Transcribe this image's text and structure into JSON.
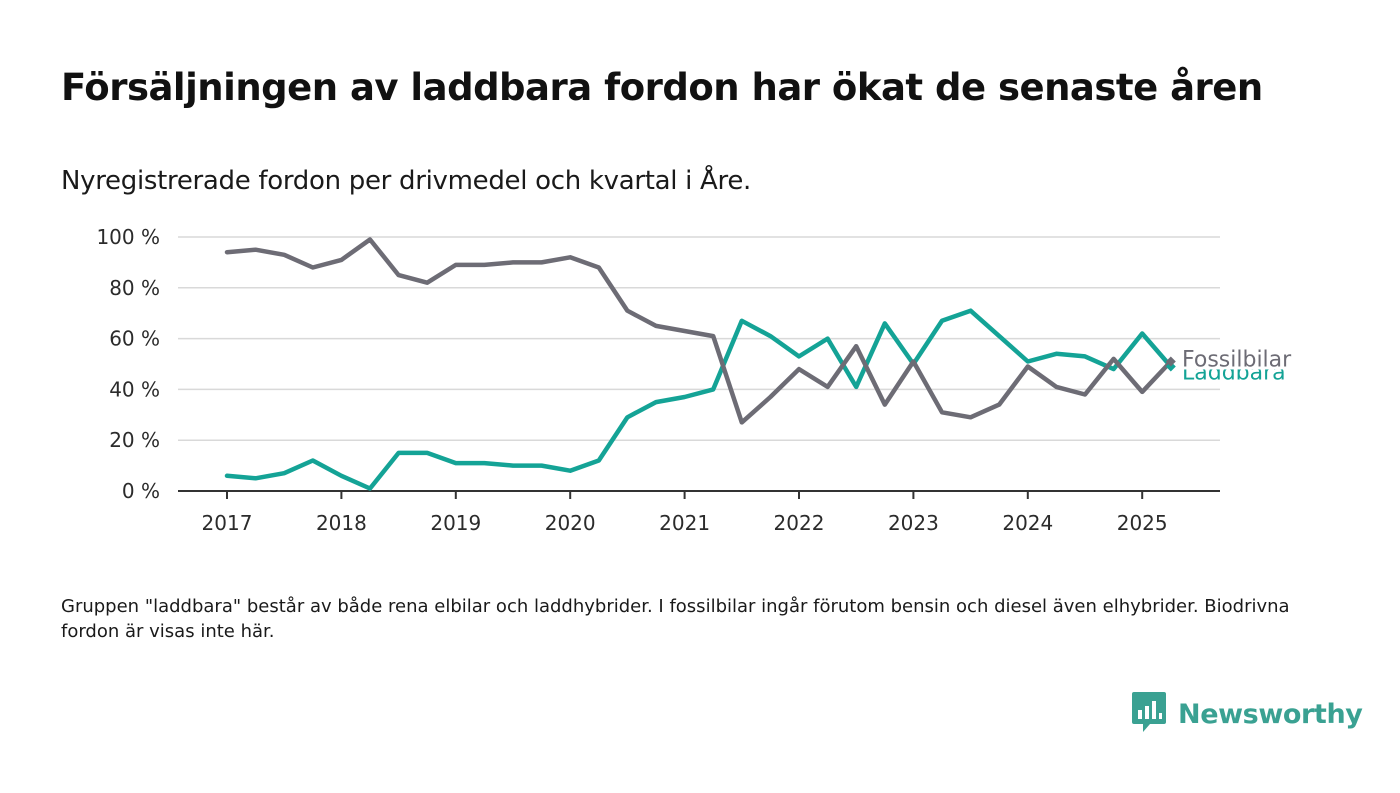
{
  "title": "Försäljningen av laddbara fordon har ökat de senaste åren",
  "subtitle": "Nyregistrerade fordon per drivmedel och kvartal i Åre.",
  "note": "Gruppen \"laddbara\" består av både rena elbilar och laddhybrider. I fossilbilar ingår förutom bensin och diesel även elhybrider. Biodrivna fordon är visas inte här.",
  "brand": {
    "name": "Newsworthy"
  },
  "colors": {
    "laddbara": "#14a396",
    "fossilbilar": "#6d6c75",
    "grid": "#d9d9d9",
    "axis": "#333333",
    "brand": "#3aa192"
  },
  "chart_data": {
    "type": "line",
    "x_tick_labels": [
      "2017",
      "2018",
      "2019",
      "2020",
      "2021",
      "2022",
      "2023",
      "2024",
      "2025"
    ],
    "y_tick_labels": [
      "0 %",
      "20 %",
      "40 %",
      "60 %",
      "80 %",
      "100 %"
    ],
    "y_ticks": [
      0,
      20,
      40,
      60,
      80,
      100
    ],
    "xlim": [
      "2017Q1",
      "2025Q2"
    ],
    "ylim": [
      0,
      100
    ],
    "grid": true,
    "x": [
      "2017Q1",
      "2017Q2",
      "2017Q3",
      "2017Q4",
      "2018Q1",
      "2018Q2",
      "2018Q3",
      "2018Q4",
      "2019Q1",
      "2019Q2",
      "2019Q3",
      "2019Q4",
      "2020Q1",
      "2020Q2",
      "2020Q3",
      "2020Q4",
      "2021Q1",
      "2021Q2",
      "2021Q3",
      "2021Q4",
      "2022Q1",
      "2022Q2",
      "2022Q3",
      "2022Q4",
      "2023Q1",
      "2023Q2",
      "2023Q3",
      "2023Q4",
      "2024Q1",
      "2024Q2",
      "2024Q3",
      "2024Q4",
      "2025Q1",
      "2025Q2"
    ],
    "series": [
      {
        "name": "Fossilbilar",
        "color": "#6d6c75",
        "values": [
          94,
          95,
          93,
          88,
          91,
          99,
          85,
          82,
          89,
          89,
          90,
          90,
          92,
          88,
          71,
          65,
          63,
          61,
          27,
          37,
          48,
          41,
          57,
          34,
          51,
          31,
          29,
          34,
          49,
          41,
          38,
          52,
          39,
          51
        ]
      },
      {
        "name": "Laddbara",
        "color": "#14a396",
        "values": [
          6,
          5,
          7,
          12,
          6,
          1,
          15,
          15,
          11,
          11,
          10,
          10,
          8,
          12,
          29,
          35,
          37,
          40,
          67,
          61,
          53,
          60,
          41,
          66,
          50,
          67,
          71,
          61,
          51,
          54,
          53,
          48,
          62,
          49
        ]
      }
    ]
  }
}
